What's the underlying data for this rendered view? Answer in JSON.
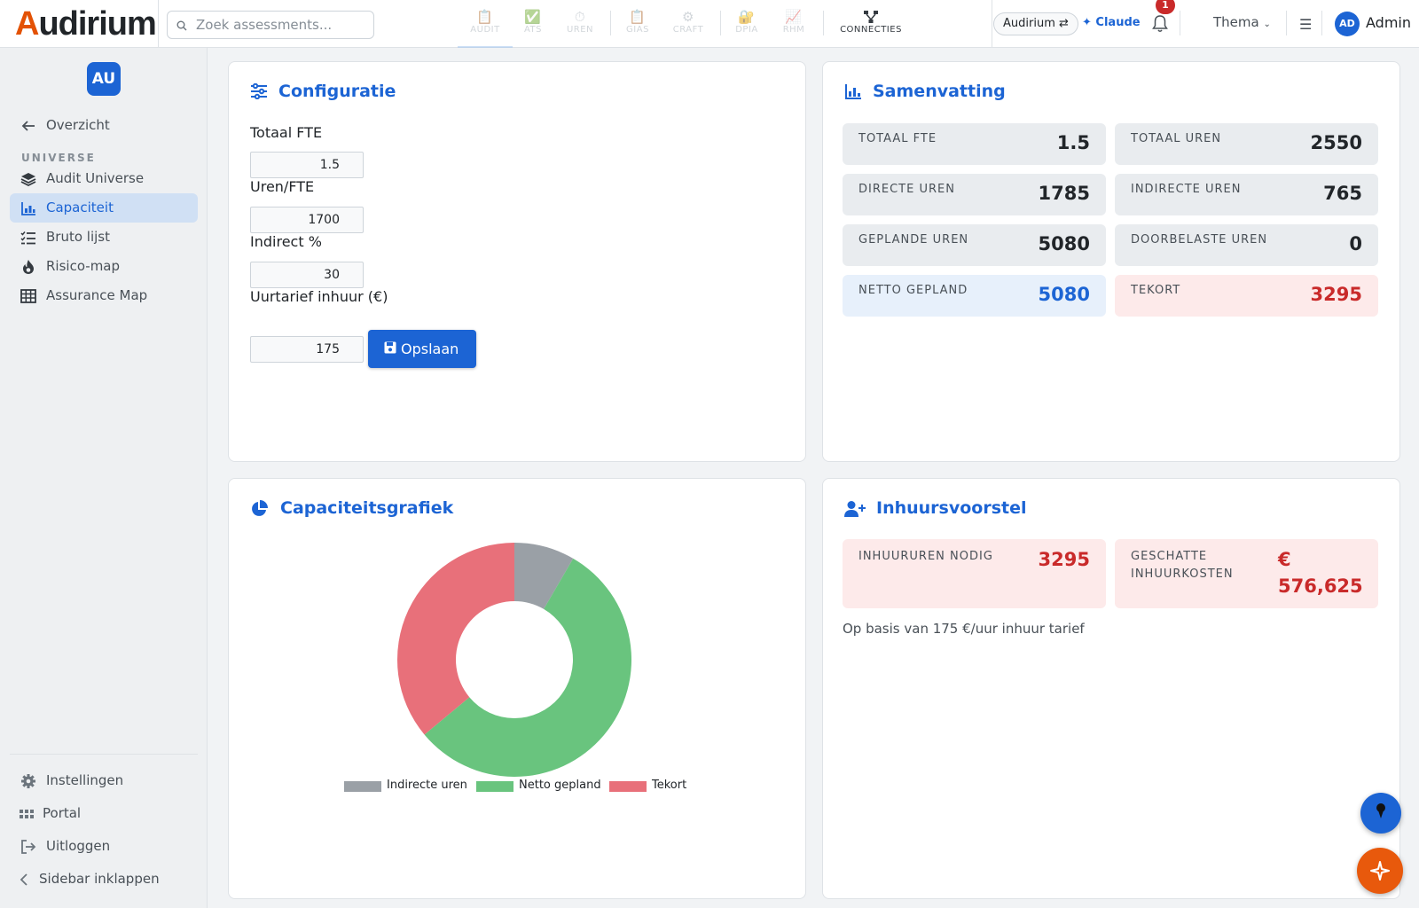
{
  "app": {
    "logo_text": "Audirium"
  },
  "search": {
    "placeholder": "Zoek assessments..."
  },
  "modules": [
    {
      "label": "AUDIT",
      "icon": "clipboard-icon"
    },
    {
      "label": "ATS",
      "icon": "checkbox-icon"
    },
    {
      "label": "UREN",
      "icon": "stopwatch-icon"
    },
    {
      "label": "GIAS",
      "icon": "clipboard-icon"
    },
    {
      "label": "CRAFT",
      "icon": "gear-icon"
    },
    {
      "label": "DPIA",
      "icon": "lock-icon"
    },
    {
      "label": "RHM",
      "icon": "chart-icon"
    },
    {
      "label": "CONNECTIES",
      "icon": "network-icon"
    }
  ],
  "header": {
    "tenant_label": "Audirium ⇄",
    "claude_label": "✦ Claude",
    "notification_count": "1",
    "theme_label": "Thema",
    "user_initials": "AD",
    "user_name": "Admin"
  },
  "sidebar": {
    "avatar": "AU",
    "back_label": "Overzicht",
    "section_title": "UNIVERSE",
    "items": [
      {
        "label": "Audit Universe",
        "icon": "layers-icon"
      },
      {
        "label": "Capaciteit",
        "icon": "chart-bar-icon",
        "active": true
      },
      {
        "label": "Bruto lijst",
        "icon": "list-check-icon"
      },
      {
        "label": "Risico-map",
        "icon": "fire-icon"
      },
      {
        "label": "Assurance Map",
        "icon": "grid-icon"
      }
    ],
    "footer": [
      {
        "label": "Instellingen",
        "icon": "gear-icon"
      },
      {
        "label": "Portal",
        "icon": "apps-icon"
      },
      {
        "label": "Uitloggen",
        "icon": "logout-icon"
      },
      {
        "label": "Sidebar inklappen",
        "icon": "chevron-left-icon"
      }
    ]
  },
  "config": {
    "title": "Configuratie",
    "fields": [
      {
        "label": "Totaal FTE",
        "value": "1.5"
      },
      {
        "label": "Uren/FTE",
        "value": "1700"
      },
      {
        "label": "Indirect %",
        "value": "30"
      },
      {
        "label": "Uurtarief inhuur (€)",
        "value": "175"
      }
    ],
    "save_label": "Opslaan"
  },
  "summary": {
    "title": "Samenvatting",
    "tiles": [
      {
        "label": "TOTAAL FTE",
        "value": "1.5",
        "tone": "neutral"
      },
      {
        "label": "TOTAAL UREN",
        "value": "2550",
        "tone": "neutral"
      },
      {
        "label": "DIRECTE UREN",
        "value": "1785",
        "tone": "neutral"
      },
      {
        "label": "INDIRECTE UREN",
        "value": "765",
        "tone": "neutral"
      },
      {
        "label": "GEPLANDE UREN",
        "value": "5080",
        "tone": "neutral"
      },
      {
        "label": "DOORBELASTE UREN",
        "value": "0",
        "tone": "neutral"
      },
      {
        "label": "NETTO GEPLAND",
        "value": "5080",
        "tone": "blue"
      },
      {
        "label": "TEKORT",
        "value": "3295",
        "tone": "red"
      }
    ]
  },
  "chart": {
    "title": "Capaciteitsgrafiek"
  },
  "chart_data": {
    "type": "pie",
    "categories": [
      "Indirecte uren",
      "Netto gepland",
      "Tekort"
    ],
    "values": [
      765,
      5080,
      3295
    ],
    "colors": [
      "#9aa0a6",
      "#69c47e",
      "#e8707a"
    ],
    "donut": true,
    "legend": "bottom"
  },
  "inhuur": {
    "title": "Inhuursvoorstel",
    "hours_label": "INHUURUREN NODIG",
    "hours_value": "3295",
    "cost_label_1": "GESCHATTE",
    "cost_label_2": "INHUURKOSTEN",
    "cost_value_1": "€",
    "cost_value_2": "576,625",
    "note": "Op basis van 175 €/uur inhuur tarief"
  },
  "colors": {
    "accent": "#1c64d4",
    "brand_orange": "#e35205",
    "danger": "#c92a2a"
  }
}
